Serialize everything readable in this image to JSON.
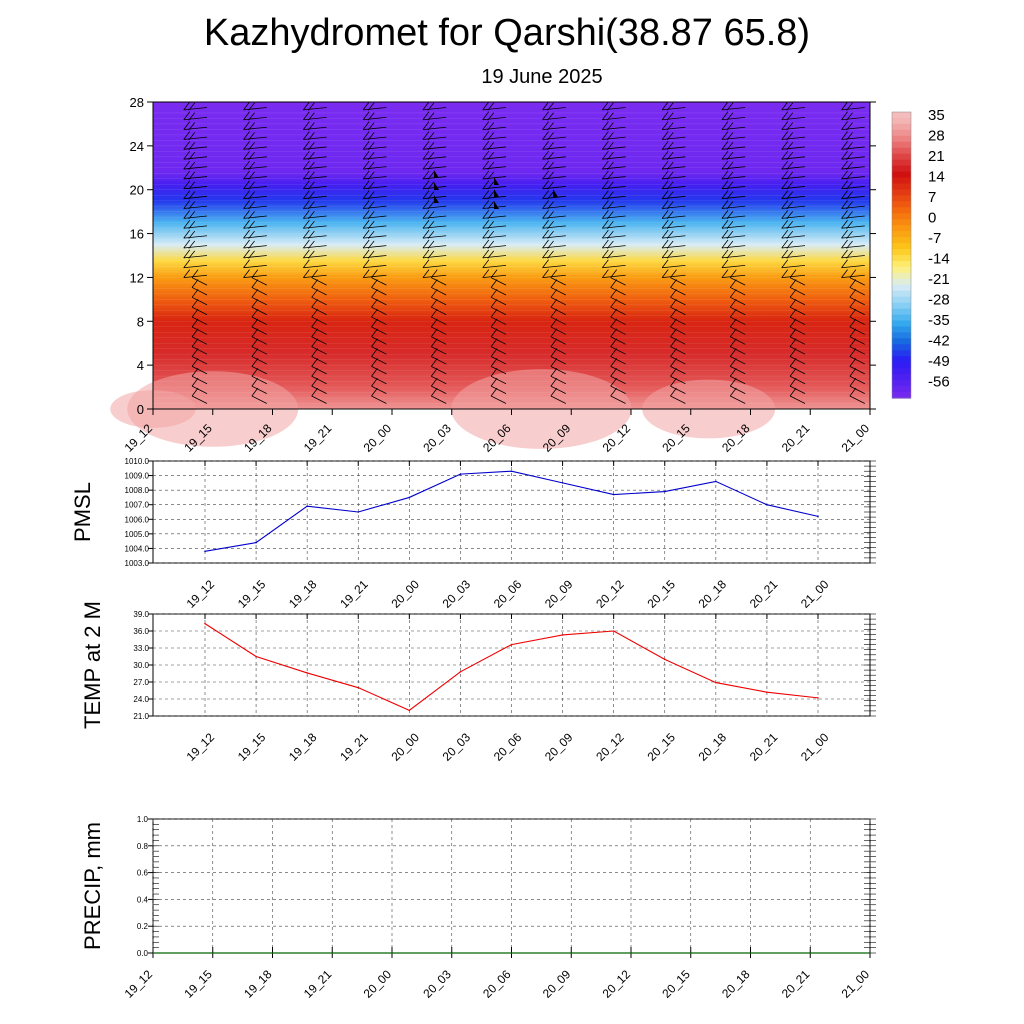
{
  "title": "Kazhydromet for Qarshi(38.87 65.8)",
  "subtitle": "19 June 2025",
  "chart_data": [
    {
      "type": "heatmap",
      "ylim": [
        0,
        28
      ],
      "yticks": [
        "0",
        "4",
        "8",
        "12",
        "16",
        "20",
        "24",
        "28"
      ],
      "x_ticks": [
        "19_12",
        "19_15",
        "19_18",
        "19_21",
        "20_00",
        "20_03",
        "20_06",
        "20_09",
        "20_12",
        "20_15",
        "20_18",
        "20_21",
        "21_00"
      ],
      "colorbar_labels": [
        "35",
        "28",
        "21",
        "14",
        "7",
        "0",
        "-7",
        "-14",
        "-21",
        "-28",
        "-35",
        "-42",
        "-49",
        "-56"
      ],
      "colorbar_colors": [
        "#f4bcbc",
        "#ee8a8a",
        "#e04848",
        "#cf1010",
        "#e23a12",
        "#f56c0e",
        "#fa9c12",
        "#fcc81a",
        "#fef07a",
        "#d8ecf6",
        "#8cd0f4",
        "#34aaee",
        "#1668e0",
        "#2a1cf4",
        "#5020f0",
        "#7a2cf0"
      ],
      "temperature_levels": [
        {
          "height": 0,
          "value": 30
        },
        {
          "height": 2,
          "value": 24
        },
        {
          "height": 5,
          "value": 19
        },
        {
          "height": 8,
          "value": 13
        },
        {
          "height": 10,
          "value": 5
        },
        {
          "height": 12,
          "value": -3
        },
        {
          "height": 13.5,
          "value": -12
        },
        {
          "height": 15,
          "value": -22
        },
        {
          "height": 17,
          "value": -33
        },
        {
          "height": 19,
          "value": -45
        },
        {
          "height": 20.5,
          "value": -52
        },
        {
          "height": 21.5,
          "value": -58
        },
        {
          "height": 28,
          "value": -60
        }
      ]
    },
    {
      "type": "line",
      "ylabel": "PMSL",
      "ylim": [
        1003.0,
        1010.0
      ],
      "yticks": [
        "1003.0",
        "1004.0",
        "1005.0",
        "1006.0",
        "1007.0",
        "1008.0",
        "1009.0",
        "1010.0"
      ],
      "categories": [
        "19_12",
        "19_15",
        "19_18",
        "19_21",
        "20_00",
        "20_03",
        "20_06",
        "20_09",
        "20_12",
        "20_15",
        "20_18",
        "20_21",
        "21_00"
      ],
      "series": [
        {
          "color": "#0000cc",
          "values": [
            1003.8,
            1004.4,
            1006.9,
            1006.5,
            1007.5,
            1009.1,
            1009.3,
            1008.5,
            1007.7,
            1007.9,
            1008.6,
            1007.0,
            1006.2
          ]
        }
      ]
    },
    {
      "type": "line",
      "ylabel": "TEMP at 2 M",
      "ylim": [
        21.0,
        39.0
      ],
      "yticks": [
        "21.0",
        "24.0",
        "27.0",
        "30.0",
        "33.0",
        "36.0",
        "39.0"
      ],
      "categories": [
        "19_12",
        "19_15",
        "19_18",
        "19_21",
        "20_00",
        "20_03",
        "20_06",
        "20_09",
        "20_12",
        "20_15",
        "20_18",
        "20_21",
        "21_00"
      ],
      "series": [
        {
          "color": "#ee0000",
          "values": [
            37.3,
            31.5,
            28.6,
            26.0,
            22.0,
            28.8,
            33.6,
            35.3,
            36.0,
            31.0,
            26.9,
            25.2,
            24.2
          ]
        }
      ]
    },
    {
      "type": "line",
      "ylabel": "PRECIP, mm",
      "ylim": [
        0.0,
        1.0
      ],
      "yticks": [
        "0.0",
        "0.2",
        "0.4",
        "0.6",
        "0.8",
        "1.0"
      ],
      "categories": [
        "19_12",
        "19_15",
        "19_18",
        "19_21",
        "20_00",
        "20_03",
        "20_06",
        "20_09",
        "20_12",
        "20_15",
        "20_18",
        "20_21",
        "21_00"
      ],
      "series": [
        {
          "color": "#006600",
          "values": [
            0,
            0,
            0,
            0,
            0,
            0,
            0,
            0,
            0,
            0,
            0,
            0,
            0
          ]
        }
      ]
    }
  ]
}
